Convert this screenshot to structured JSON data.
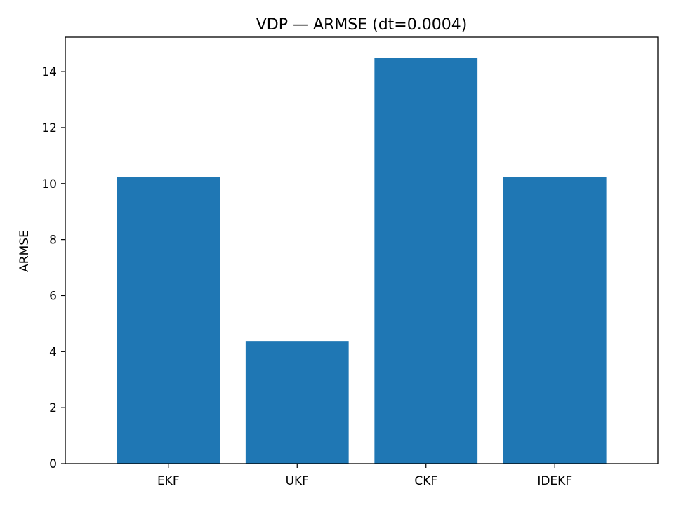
{
  "chart_data": {
    "type": "bar",
    "title": "VDP — ARMSE (dt=0.0004)",
    "xlabel": "",
    "ylabel": "ARMSE",
    "categories": [
      "EKF",
      "UKF",
      "CKF",
      "IDEKF"
    ],
    "values": [
      10.22,
      4.38,
      14.5,
      10.22
    ],
    "ylim": [
      0,
      15.23
    ],
    "yticks": [
      0,
      2,
      4,
      6,
      8,
      10,
      12,
      14
    ],
    "bar_color": "#1f77b4",
    "grid": false,
    "legend": "none"
  }
}
